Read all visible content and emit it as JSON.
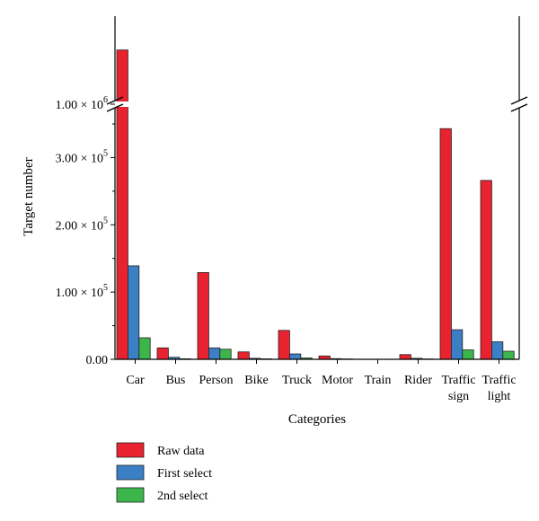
{
  "chart_data": {
    "type": "bar",
    "title": "",
    "xlabel": "Categories",
    "ylabel": "Target number",
    "categories": [
      [
        "Car"
      ],
      [
        "Bus"
      ],
      [
        "Person"
      ],
      [
        "Bike"
      ],
      [
        "Truck"
      ],
      [
        "Motor"
      ],
      [
        "Train"
      ],
      [
        "Rider"
      ],
      [
        "Traffic",
        "sign"
      ],
      [
        "Traffic",
        "light"
      ]
    ],
    "series": [
      {
        "name": "Raw data",
        "color": "#e8222e",
        "values": [
          1230000,
          17000,
          129000,
          11000,
          43000,
          5000,
          0,
          7000,
          343000,
          266000
        ]
      },
      {
        "name": "First select",
        "color": "#3b7fc4",
        "values": [
          139000,
          3000,
          17000,
          1500,
          8000,
          1000,
          0,
          1500,
          44000,
          26000
        ]
      },
      {
        "name": "2nd select",
        "color": "#3cb54a",
        "values": [
          32000,
          800,
          15000,
          700,
          2000,
          500,
          0,
          500,
          14000,
          12000
        ]
      }
    ],
    "ylim": [
      0,
      1320000
    ],
    "y_break": [
      370000,
      1100000
    ],
    "y_ticks": [
      {
        "value": 0,
        "label": "0.00"
      },
      {
        "value": 100000,
        "label": "1.00 × 10",
        "exp": "5"
      },
      {
        "value": 200000,
        "label": "2.00 × 10",
        "exp": "5"
      },
      {
        "value": 300000,
        "label": "3.00 × 10",
        "exp": "5"
      },
      {
        "value": 1000000,
        "label": "1.00 × 10",
        "exp": "6"
      }
    ],
    "legend_position": "bottom-left",
    "grid": false
  }
}
